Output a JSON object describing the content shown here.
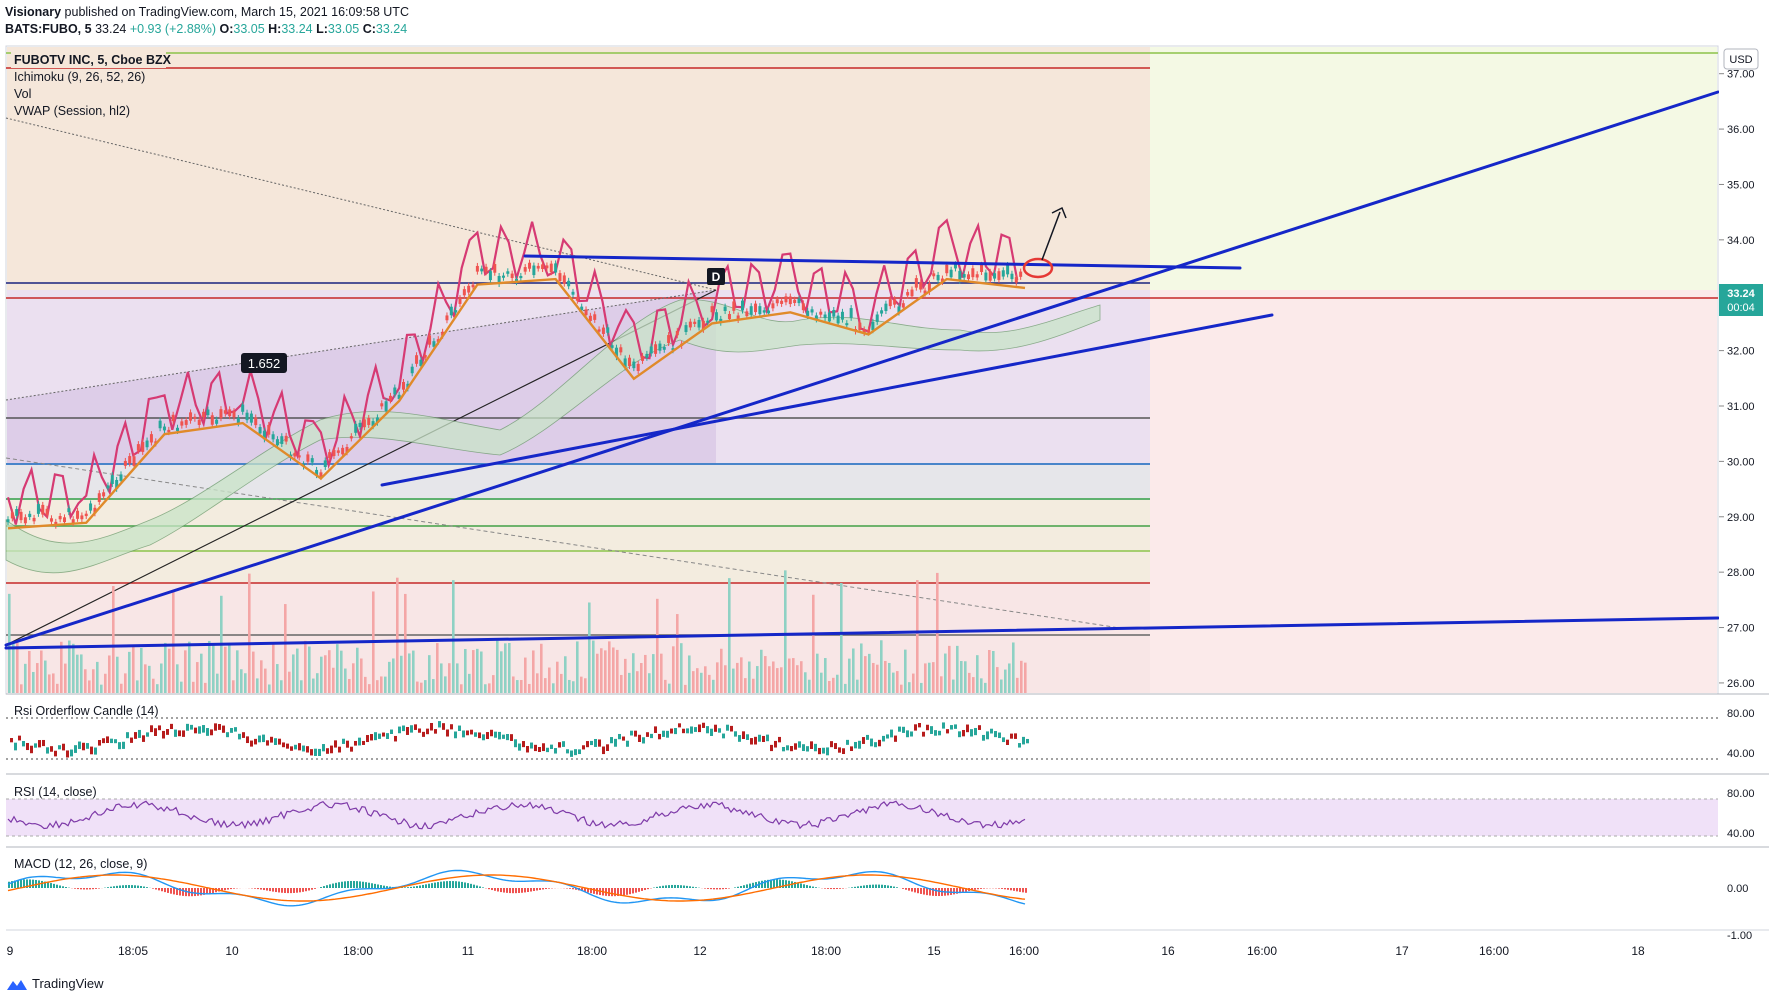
{
  "header": {
    "line1_author": "Visionary",
    "line1_rest": "published on TradingView.com, March 15, 2021 16:09:58 UTC",
    "line2_symbol": "BATS:FUBO, 5",
    "line2_price": "33.24",
    "line2_change": "+0.93 (+2.88%)",
    "ohlc": {
      "o_label": "O:",
      "o": "33.05",
      "h_label": "H:",
      "h": "33.24",
      "l_label": "L:",
      "l": "33.05",
      "c_label": "C:",
      "c": "33.24"
    }
  },
  "legend": {
    "title": "FUBOTV INC, 5, Cboe BZX",
    "ind1": "Ichimoku (9, 26, 52, 26)",
    "ind2": "Vol",
    "ind3": "VWAP (Session, hl2)"
  },
  "price_badge": {
    "value": "33.24",
    "countdown": "00:04",
    "currency": "USD"
  },
  "annotations": {
    "ratio_label": "1.652",
    "point_label": "D"
  },
  "panes": {
    "p1": "Rsi Orderflow Candle (14)",
    "p2": "RSI (14, close)",
    "p3": "MACD (12, 26, close, 9)"
  },
  "footer": {
    "brand": "TradingView"
  },
  "colors": {
    "blue": "#1527c8",
    "pink": "#d63a73",
    "orange": "#e08a2a",
    "red": "#c62828",
    "green": "#43a047",
    "lime": "#8bc34a"
  },
  "chart_data": {
    "type": "candlestick",
    "title": "FUBOTV INC, 5, Cboe BZX",
    "y_axis": {
      "ticks": [
        "37.00",
        "36.00",
        "35.00",
        "34.00",
        "33.00",
        "32.00",
        "31.00",
        "30.00",
        "29.00",
        "28.00",
        "27.00",
        "26.00"
      ],
      "ylim": [
        25.8,
        37.5
      ],
      "currency": "USD"
    },
    "x_axis": {
      "ticks": [
        "9",
        "18:05",
        "10",
        "18:00",
        "11",
        "18:00",
        "12",
        "18:00",
        "15",
        "16:00",
        "16",
        "16:00",
        "17",
        "16:00",
        "18"
      ]
    },
    "last_price": 33.24,
    "price_series_approx": [
      {
        "t": "9",
        "close": 28.9
      },
      {
        "t": "18:05",
        "close": 29.0
      },
      {
        "t": "10",
        "close": 30.6
      },
      {
        "t": "18:00",
        "close": 30.8
      },
      {
        "t": "10 late",
        "close": 29.8
      },
      {
        "t": "11",
        "close": 31.2
      },
      {
        "t": "11 mid",
        "close": 33.3
      },
      {
        "t": "18:00",
        "close": 33.4
      },
      {
        "t": "12",
        "close": 31.6
      },
      {
        "t": "12 mid",
        "close": 32.6
      },
      {
        "t": "18:00",
        "close": 32.8
      },
      {
        "t": "15",
        "close": 32.4
      },
      {
        "t": "15 mid",
        "close": 33.4
      },
      {
        "t": "16:00",
        "close": 33.24
      }
    ],
    "horizontal_levels": [
      {
        "price": 37.4,
        "color": "lime"
      },
      {
        "price": 37.1,
        "color": "red"
      },
      {
        "price": 33.3,
        "color": "blue"
      },
      {
        "price": 33.0,
        "color": "red"
      },
      {
        "price": 30.9,
        "color": "gray"
      },
      {
        "price": 30.0,
        "color": "blue"
      },
      {
        "price": 29.4,
        "color": "green"
      },
      {
        "price": 28.9,
        "color": "green"
      },
      {
        "price": 28.4,
        "color": "lime"
      },
      {
        "price": 27.8,
        "color": "red"
      },
      {
        "price": 26.9,
        "color": "gray"
      }
    ],
    "rsi_orderflow": {
      "ticks": [
        "80.00",
        "40.00"
      ],
      "levels": [
        70,
        30
      ]
    },
    "rsi": {
      "ticks": [
        "80.00",
        "40.00"
      ],
      "band": [
        30,
        70
      ]
    },
    "macd": {
      "ticks": [
        "0.00",
        "-1.00"
      ]
    }
  }
}
